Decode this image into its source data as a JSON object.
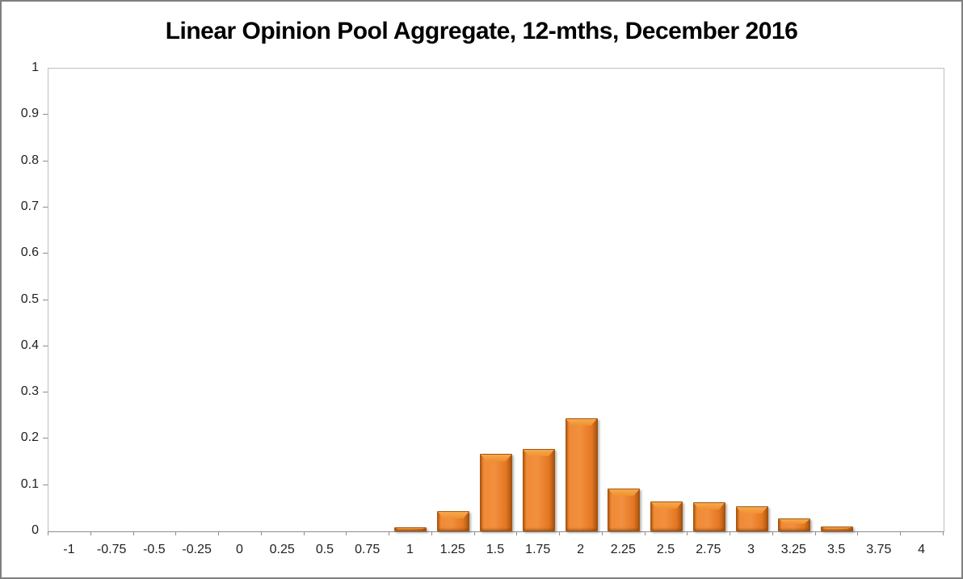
{
  "title": "Linear Opinion Pool Aggregate, 12-mths, December 2016",
  "chart_data": {
    "type": "bar",
    "title": "Linear Opinion Pool Aggregate, 12-mths, December 2016",
    "xlabel": "",
    "ylabel": "",
    "categories": [
      "-1",
      "-0.75",
      "-0.5",
      "-0.25",
      "0",
      "0.25",
      "0.5",
      "0.75",
      "1",
      "1.25",
      "1.5",
      "1.75",
      "2",
      "2.25",
      "2.5",
      "2.75",
      "3",
      "3.25",
      "3.5",
      "3.75",
      "4"
    ],
    "values": [
      0,
      0,
      0,
      0,
      0,
      0,
      0,
      0,
      0.008,
      0.043,
      0.168,
      0.178,
      0.245,
      0.093,
      0.065,
      0.063,
      0.054,
      0.028,
      0.011,
      0,
      0
    ],
    "ylim": [
      0,
      1
    ],
    "ytick_labels": [
      "0",
      "0.1",
      "0.2",
      "0.3",
      "0.4",
      "0.5",
      "0.6",
      "0.7",
      "0.8",
      "0.9",
      "1"
    ],
    "ytick_step": 0.1,
    "grid": false,
    "legend": null,
    "colors": {
      "bar_fill": "#ED7D26",
      "bar_highlight": "#F8A950",
      "bar_edge": "#A3560F",
      "axis_line": "#8C8C8C",
      "plot_border": "#BFBFBF",
      "frame_border": "#7F7F7F",
      "text": "#1F1F1F"
    }
  }
}
